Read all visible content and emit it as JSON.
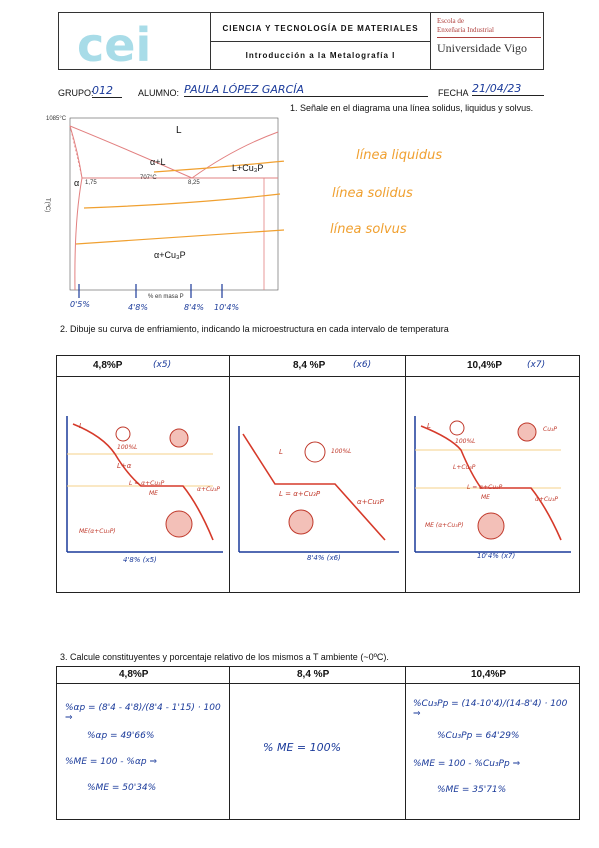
{
  "header": {
    "logo_text": "cei",
    "course": "CIENCIA Y TECNOLOGÍA DE MATERIALES",
    "subtitle": "Introducción a la Metalografía I",
    "school_line1": "Escola de",
    "school_line2": "Enxeñaría Industrial",
    "university": "Universidade Vigo"
  },
  "form": {
    "grupo_label": "GRUPO:",
    "grupo_value": "012",
    "alumno_label": "ALUMNO:",
    "alumno_value": "PAULA LÓPEZ GARCÍA",
    "fecha_label": "FECHA",
    "fecha_value": "21/04/23"
  },
  "q1": {
    "text": "1. Señale en el diagrama una línea solidus, liquidus y solvus.",
    "ann_liquidus": "línea liquidus",
    "ann_solidus": "línea solidus",
    "ann_solvus": "línea solvus"
  },
  "diagram": {
    "y_label": "T(ºC)",
    "y_ticks": [
      "1100",
      "1000",
      "900",
      "800",
      "700",
      "600",
      "500",
      "400",
      "300",
      "200",
      "100",
      "0"
    ],
    "x_ticks": [
      "0",
      "1",
      "2",
      "3",
      "4",
      "5",
      "6",
      "7",
      "8",
      "9",
      "10",
      "11",
      "12",
      "13",
      "14"
    ],
    "x_label": "% en masa P",
    "t_1085": "1085°C",
    "t_707": "707°C",
    "c_175": "1,75",
    "c_825": "8,25",
    "region_L": "L",
    "region_aL": "α+L",
    "region_LCu3P": "L+Cu₃P",
    "region_a": "α",
    "region_aCu3P": "α+Cu₃P",
    "marks": [
      "0'5%",
      "4'8%",
      "8'4%",
      "10'4%"
    ]
  },
  "q2": {
    "text": "2. Dibuje su curva de enfriamiento, indicando la microestructura en cada intervalo de temperatura",
    "cols": [
      {
        "title": "4,8%P",
        "tag": "(x5)",
        "caption": "4'8% (x5)",
        "labels": [
          "L",
          "100%L",
          "L+α",
          "L = α+Cu₃P",
          "ME",
          "α+Cu₃P",
          "ME(α+Cu₃P)"
        ]
      },
      {
        "title": "8,4 %P",
        "tag": "(x6)",
        "caption": "8'4% (x6)",
        "labels": [
          "L",
          "100%L",
          "L = α+Cu₃P",
          "α+Cu₃P"
        ]
      },
      {
        "title": "10,4%P",
        "tag": "(x7)",
        "caption": "10'4% (x7)",
        "labels": [
          "L",
          "100%L",
          "Cu₃P",
          "L+Cu₃P",
          "L = α+Cu₃P",
          "ME",
          "α+Cu₃P",
          "ME (α+Cu₃P)"
        ]
      }
    ]
  },
  "q3": {
    "text": "3. Calcule constituyentes y porcentaje relativo de los mismos a T ambiente (~0ºC).",
    "cols": [
      {
        "title": "4,8%P",
        "lines": [
          "%αp = (8'4 - 4'8)/(8'4 - 1'15) · 100 ⇒",
          "%αp = 49'66%",
          "%ME = 100 - %αp ⇒",
          "%ME = 50'34%"
        ]
      },
      {
        "title": "8,4 %P",
        "lines": [
          "% ME = 100%"
        ]
      },
      {
        "title": "10,4%P",
        "lines": [
          "%Cu₃Pp = (14-10'4)/(14-8'4) · 100 ⇒",
          "%Cu₃Pp = 64'29%",
          "%ME = 100 - %Cu₃Pp ⇒",
          "%ME = 35'71%"
        ]
      }
    ]
  }
}
